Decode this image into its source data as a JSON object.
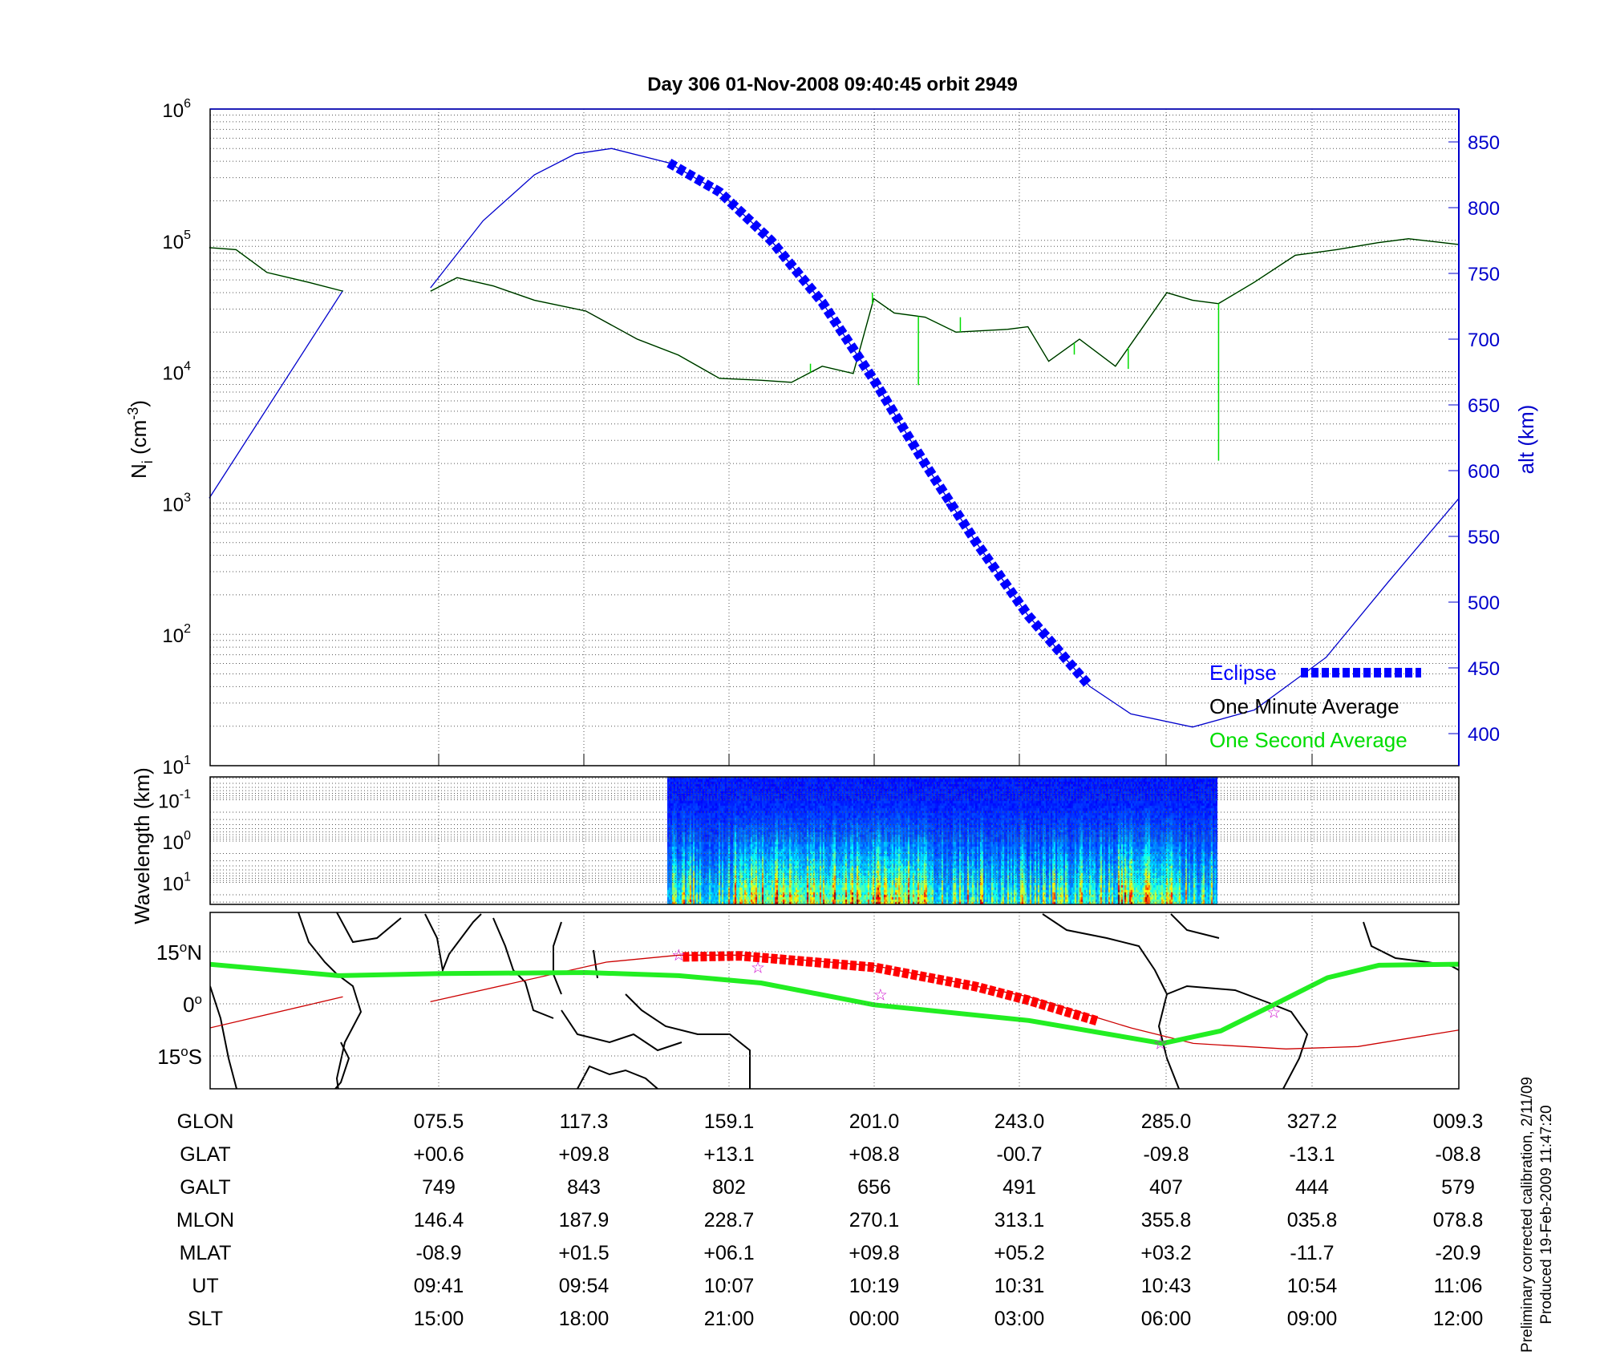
{
  "title": "Day 306  01-Nov-2008 09:40:45   orbit 2949",
  "colors": {
    "density_minute": "#000000",
    "density_second": "#00dd00",
    "altitude": "#0000cc",
    "eclipse": "#0000ff",
    "track": "#cc0000",
    "map_eclipse": "#ff0000",
    "trajectory_green": "#22ee22",
    "stars": "#cc00cc"
  },
  "chart_data": [
    {
      "type": "line",
      "panel": "density",
      "ylabel_main": "N",
      "ylabel_sub": "i",
      "ylabel_unit": " (cm",
      "ylabel_exp": "-3",
      "ylabel_close": ")",
      "yscale": "log",
      "ylim": [
        10,
        1000000
      ],
      "ytick_exponents": [
        "1",
        "2",
        "3",
        "4",
        "5",
        "6"
      ],
      "y2label": "alt (km)",
      "y2lim": [
        380,
        870
      ],
      "y2ticks": [
        "400",
        "450",
        "500",
        "550",
        "600",
        "650",
        "700",
        "750",
        "800",
        "850"
      ],
      "grid": true,
      "legend_position": "bottom-right",
      "legend": {
        "eclipse": "Eclipse",
        "minute": "One Minute Average",
        "second": "One Second Average"
      },
      "series": [
        {
          "name": "One Minute Average",
          "axis": "left",
          "segments": [
            [
              [
                "09:21:52",
                88000
              ],
              [
                "09:24:06",
                85000
              ],
              [
                "09:26:41",
                57000
              ],
              [
                "09:30:07",
                48000
              ],
              [
                "09:33:01",
                41000
              ]
            ],
            [
              [
                "09:40:19",
                41000
              ],
              [
                "09:42:32",
                52000
              ],
              [
                "09:45:33",
                45000
              ],
              [
                "09:48:59",
                35000
              ],
              [
                "09:53:16",
                29000
              ],
              [
                "09:57:33",
                17700
              ],
              [
                "10:00:59",
                13400
              ],
              [
                "10:04:25",
                8900
              ],
              [
                "10:07:51",
                8600
              ],
              [
                "10:10:25",
                8300
              ],
              [
                "10:12:59",
                11000
              ],
              [
                "10:15:34",
                9700
              ],
              [
                "10:17:17",
                36000
              ],
              [
                "10:18:59",
                28000
              ],
              [
                "10:21:34",
                26000
              ],
              [
                "10:24:08",
                20000
              ],
              [
                "10:28:26",
                21000
              ],
              [
                "10:30:08",
                22000
              ],
              [
                "10:31:52",
                12000
              ],
              [
                "10:34:26",
                17700
              ],
              [
                "10:37:26",
                11000
              ],
              [
                "10:39:35",
                21000
              ],
              [
                "10:41:43",
                40000
              ],
              [
                "10:43:52",
                35000
              ],
              [
                "10:46:01",
                33000
              ],
              [
                "10:49:01",
                48000
              ],
              [
                "10:52:26",
                77000
              ],
              [
                "10:55:52",
                85000
              ],
              [
                "10:59:18",
                96000
              ],
              [
                "11:01:52",
                103000
              ],
              [
                "11:06:05",
                93000
              ]
            ]
          ]
        },
        {
          "name": "One Second Average",
          "axis": "left",
          "spikes": [
            [
              "10:12:00",
              11500
            ],
            [
              "10:17:10",
              40000
            ],
            [
              "10:21:00",
              7900
            ],
            [
              "10:24:30",
              26000
            ],
            [
              "10:34:00",
              13500
            ],
            [
              "10:38:30",
              10500
            ],
            [
              "10:46:02",
              2100
            ]
          ]
        },
        {
          "name": "altitude",
          "axis": "right",
          "segments": [
            [
              [
                "09:21:52",
                579
              ],
              [
                "09:33:01",
                737
              ]
            ],
            [
              [
                "09:40:19",
                739
              ],
              [
                "09:44:42",
                790
              ],
              [
                "09:48:59",
                825
              ],
              [
                "09:52:25",
                841
              ],
              [
                "09:55:25",
                845
              ],
              [
                "10:00:13",
                834
              ],
              [
                "10:04:25",
                812
              ],
              [
                "10:08:43",
                775
              ],
              [
                "10:12:59",
                728
              ],
              [
                "10:17:17",
                669
              ],
              [
                "10:21:34",
                605
              ],
              [
                "10:25:51",
                545
              ],
              [
                "10:30:08",
                490
              ],
              [
                "10:35:17",
                436
              ],
              [
                "10:38:43",
                415
              ],
              [
                "10:43:52",
                405
              ],
              [
                "10:49:01",
                418
              ],
              [
                "10:55:00",
                458
              ],
              [
                "11:00:09",
                515
              ],
              [
                "11:06:05",
                579
              ]
            ]
          ]
        },
        {
          "name": "Eclipse",
          "axis": "right",
          "range": [
            "10:00:13",
            "10:35:17"
          ]
        }
      ]
    },
    {
      "type": "heatmap",
      "panel": "spectrogram",
      "ylabel": "Wavelength (km)",
      "yscale": "log",
      "ytick_base": "10",
      "ytick_exponents": [
        "-1",
        "0",
        "1"
      ],
      "time_range": [
        "10:00:05",
        "10:45:59"
      ],
      "colormap": "jet"
    },
    {
      "type": "map",
      "panel": "ground-track",
      "ytick_labels": [
        {
          "deg": "15",
          "sym": "o",
          "hem": "N"
        },
        {
          "deg": "0",
          "sym": "o",
          "hem": ""
        },
        {
          "deg": "15",
          "sym": "o",
          "hem": "S"
        }
      ],
      "green_line": [
        [
          9.4,
          11.4
        ],
        [
          46.7,
          8.1
        ],
        [
          76.4,
          8.7
        ],
        [
          117.9,
          9.0
        ],
        [
          144.6,
          8.1
        ],
        [
          168.3,
          6.0
        ],
        [
          200.9,
          -0.3
        ],
        [
          245.4,
          -4.8
        ],
        [
          283.9,
          -11.4
        ],
        [
          300.7,
          -7.8
        ],
        [
          316.5,
          0.0
        ],
        [
          331.4,
          7.5
        ],
        [
          346.2,
          11.1
        ],
        [
          369.6,
          11.4
        ]
      ],
      "orbit_track": [
        [
          [
            9.4,
            -7.0
          ],
          [
            47.9,
            2.0
          ]
        ],
        [
          [
            73.1,
            0.6
          ],
          [
            123.8,
            12.0
          ],
          [
            144.6,
            14.0
          ],
          [
            162.4,
            14.0
          ],
          [
            200.9,
            11.0
          ],
          [
            245.4,
            2.0
          ],
          [
            275.0,
            -7.0
          ],
          [
            292.8,
            -11.4
          ],
          [
            319.5,
            -13.0
          ],
          [
            340.2,
            -12.3
          ],
          [
            369.6,
            -7.5
          ]
        ]
      ],
      "eclipse_track": [
        [
          145.8,
          13.5
        ],
        [
          162.4,
          13.8
        ],
        [
          200.9,
          10.5
        ],
        [
          230.0,
          5.0
        ],
        [
          245.4,
          1.0
        ],
        [
          265.3,
          -5.0
        ]
      ],
      "stars": [
        [
          144.6,
          14.1
        ],
        [
          167.4,
          10.5
        ],
        [
          202.7,
          2.7
        ],
        [
          283.3,
          -11.4
        ],
        [
          316.0,
          -2.4
        ]
      ]
    }
  ],
  "table": {
    "rows": [
      {
        "label": "GLON",
        "values": [
          "075.5",
          "117.3",
          "159.1",
          "201.0",
          "243.0",
          "285.0",
          "327.2",
          "009.3"
        ]
      },
      {
        "label": "GLAT",
        "values": [
          "+00.6",
          "+09.8",
          "+13.1",
          "+08.8",
          "-00.7",
          "-09.8",
          "-13.1",
          "-08.8"
        ]
      },
      {
        "label": "GALT",
        "values": [
          "749",
          "843",
          "802",
          "656",
          "491",
          "407",
          "444",
          "579"
        ]
      },
      {
        "label": "MLON",
        "values": [
          "146.4",
          "187.9",
          "228.7",
          "270.1",
          "313.1",
          "355.8",
          "035.8",
          "078.8"
        ]
      },
      {
        "label": "MLAT",
        "values": [
          "-08.9",
          "+01.5",
          "+06.1",
          "+09.8",
          "+05.2",
          "+03.2",
          "-11.7",
          "-20.9"
        ]
      },
      {
        "label": "UT",
        "values": [
          "09:41",
          "09:54",
          "10:07",
          "10:19",
          "10:31",
          "10:43",
          "10:54",
          "11:06"
        ]
      },
      {
        "label": "SLT",
        "values": [
          "15:00",
          "18:00",
          "21:00",
          "00:00",
          "03:00",
          "06:00",
          "09:00",
          "12:00"
        ]
      }
    ]
  },
  "footer": {
    "line1": "Preliminary corrected calibration, 2/11/09",
    "line2": "Produced 19-Feb-2009 11:47:20"
  }
}
